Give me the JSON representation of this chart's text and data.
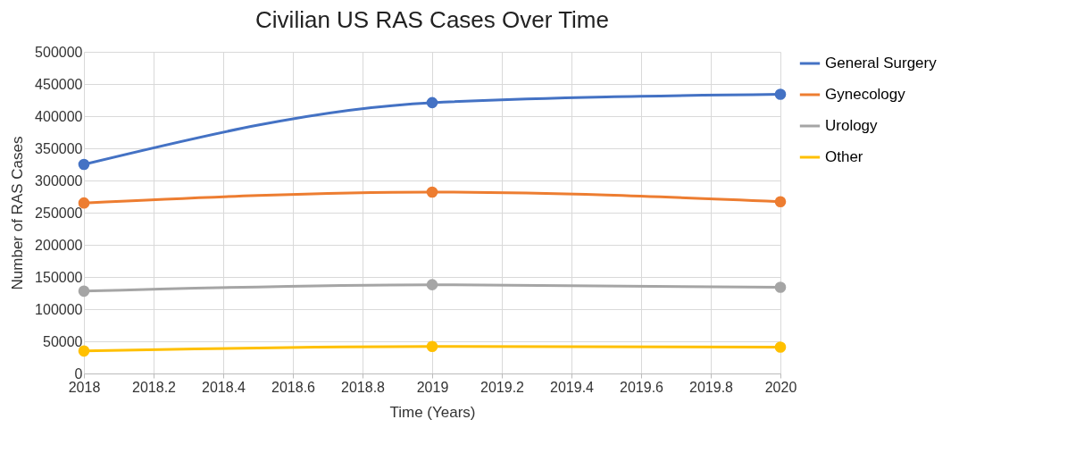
{
  "chart_data": {
    "type": "line",
    "title": "Civilian US RAS Cases Over Time",
    "xlabel": "Time (Years)",
    "ylabel": "Number of RAS Cases",
    "x": [
      2018,
      2019,
      2020
    ],
    "series": [
      {
        "name": "General Surgery",
        "color": "#4472c4",
        "values": [
          325000,
          421000,
          434000
        ]
      },
      {
        "name": "Gynecology",
        "color": "#ed7d31",
        "values": [
          265000,
          282000,
          267000
        ]
      },
      {
        "name": "Urology",
        "color": "#a5a5a5",
        "values": [
          128000,
          138000,
          134000
        ]
      },
      {
        "name": "Other",
        "color": "#ffc000",
        "values": [
          35000,
          42000,
          41000
        ]
      }
    ],
    "xlim": [
      2018,
      2020
    ],
    "xticks": [
      2018,
      2018.2,
      2018.4,
      2018.6,
      2018.8,
      2019,
      2019.2,
      2019.4,
      2019.6,
      2019.8,
      2020
    ],
    "ylim": [
      0,
      500000
    ],
    "yticks": [
      0,
      50000,
      100000,
      150000,
      200000,
      250000,
      300000,
      350000,
      400000,
      450000,
      500000
    ],
    "grid": true,
    "legend": "right",
    "marker": "circle",
    "line_style": "solid"
  }
}
